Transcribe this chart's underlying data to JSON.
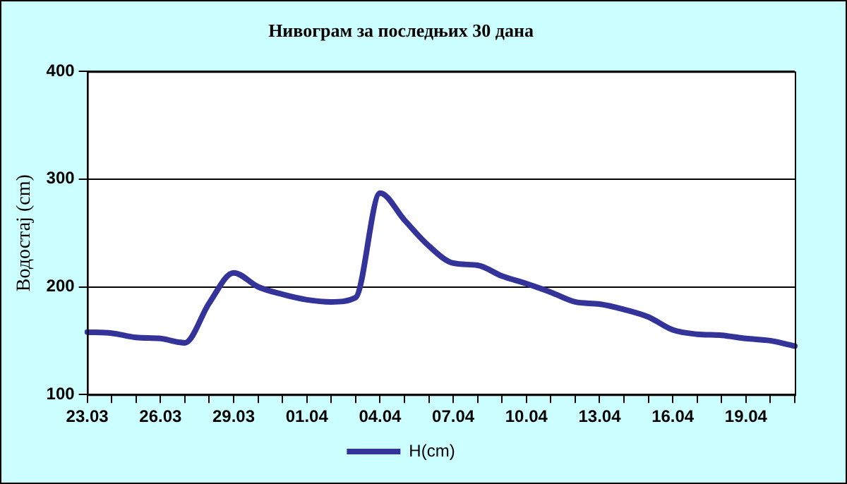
{
  "chart_data": {
    "type": "line",
    "title": "Нивограм за последњих 30 дана",
    "ylabel": "Водостај (cm)",
    "categories": [
      "23.03",
      null,
      null,
      "26.03",
      null,
      null,
      "29.03",
      null,
      null,
      "01.04",
      null,
      null,
      "04.04",
      null,
      null,
      "07.04",
      null,
      null,
      "10.04",
      null,
      null,
      "13.04",
      null,
      null,
      "16.04",
      null,
      null,
      "19.04",
      null,
      null
    ],
    "series": [
      {
        "name": "H(cm)",
        "color": "#333399",
        "values": [
          158,
          157,
          153,
          152,
          148,
          185,
          213,
          200,
          193,
          188,
          186,
          190,
          287,
          262,
          238,
          222,
          220,
          210,
          203,
          195,
          186,
          184,
          179,
          172,
          160,
          156,
          155,
          152,
          150,
          145
        ]
      }
    ],
    "ylim": [
      100,
      400
    ],
    "yticks": [
      100,
      200,
      300,
      400
    ],
    "grid": "y",
    "legend": "bottom",
    "marker": "none",
    "line_style": "solid"
  }
}
